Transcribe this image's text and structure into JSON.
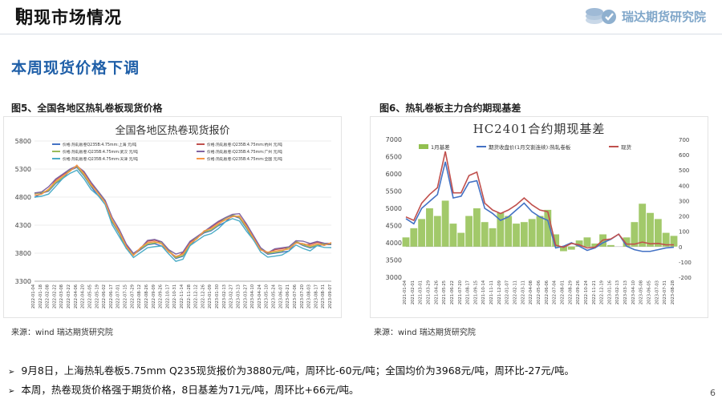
{
  "header": {
    "title": "期现市场情况",
    "brand": "瑞达期货研究院"
  },
  "subtitle": "本周现货价格下调",
  "figures": {
    "fig5_caption": "图5、全国各地区热轧卷板现货价格",
    "fig6_caption": "图6、热轧卷板主力合约期现基差",
    "fig5_source": "来源：wind   瑞达期货研究院",
    "fig6_source": "来源：wind   瑞达期货研究院"
  },
  "bullets": [
    "9月8日，上海热轧卷板5.75mm Q235现货报价为3880元/吨，周环比-60元/吨；全国均价为3968元/吨，周环比-27元/吨。",
    "本周，热卷现货价格强于期货价格，8日基差为71元/吨，周环比+66元/吨。"
  ],
  "page_number": "6",
  "colors": {
    "brand": "#7fa6c9",
    "subtitle": "#1f5fa8"
  },
  "chart_data": [
    {
      "type": "line",
      "title": "全国各地区热卷现货报价",
      "ylim": [
        3300,
        5800
      ],
      "yticks": [
        3300,
        3800,
        4300,
        4800,
        5300,
        5800
      ],
      "x_dates": [
        "2022-01-04",
        "2022-01-18",
        "2022-02-08",
        "2022-02-22",
        "2022-03-08",
        "2022-03-22",
        "2022-04-06",
        "2022-04-20",
        "2022-05-05",
        "2022-05-19",
        "2022-06-02",
        "2022-06-17",
        "2022-07-01",
        "2022-07-15",
        "2022-07-29",
        "2022-08-12",
        "2022-08-26",
        "2022-09-09",
        "2022-09-26",
        "2022-10-17",
        "2022-10-31",
        "2022-11-14",
        "2022-11-28",
        "2022-12-12",
        "2022-12-26",
        "2023-01-09",
        "2023-01-30",
        "2023-02-13",
        "2023-02-27",
        "2023-03-13",
        "2023-03-27",
        "2023-04-10",
        "2023-04-24",
        "2023-05-10",
        "2023-05-24",
        "2023-06-07",
        "2023-06-21",
        "2023-07-06",
        "2023-07-20",
        "2023-08-03",
        "2023-08-17",
        "2023-08-31",
        "2023-09-07"
      ],
      "x_label_step": 1,
      "series": [
        {
          "name": "价格:热轧板卷Q235B:4.75mm:上海 元/吨",
          "color": "#4472c4",
          "offset": 0
        },
        {
          "name": "价格:热轧板卷:Q235B:4.75mm:杭州 元/吨",
          "color": "#c0504d",
          "offset": 40
        },
        {
          "name": "价格:热轧板卷:Q235B:4.75mm:武汉 元/吨",
          "color": "#9bbb59",
          "offset": 20
        },
        {
          "name": "价格:热轧板卷:Q235B:4.75mm:广州 元/吨",
          "color": "#8064a2",
          "offset": 60
        },
        {
          "name": "价格:热轧板卷:Q235B:4.75mm:天津 元/吨",
          "color": "#4bacc6",
          "offset": -40
        },
        {
          "name": "价格:热轧板卷:Q235B:4.75mm:全国 元/吨",
          "color": "#f79646",
          "offset": 25
        }
      ],
      "base_values": [
        4820,
        4850,
        4900,
        5050,
        5150,
        5250,
        5320,
        5180,
        5000,
        4850,
        4700,
        4350,
        4150,
        3900,
        3750,
        3850,
        3950,
        3980,
        3950,
        3820,
        3700,
        3750,
        3950,
        4050,
        4150,
        4200,
        4300,
        4380,
        4450,
        4420,
        4250,
        4050,
        3850,
        3770,
        3800,
        3830,
        3860,
        3980,
        3930,
        3900,
        3950,
        3930,
        3940
      ]
    },
    {
      "type": "line+bar",
      "title": "HC2401合约期现基差",
      "ylim_left": [
        3000,
        7000
      ],
      "yticks_left": [
        3000,
        3500,
        4000,
        4500,
        5000,
        5500,
        6000,
        6500,
        7000
      ],
      "ylim_right": [
        -200,
        700
      ],
      "yticks_right": [
        -200,
        -100,
        0,
        100,
        200,
        300,
        400,
        500,
        600,
        700
      ],
      "x_dates": [
        "2021-01-04",
        "2021-02-01",
        "2021-03-01",
        "2021-03-29",
        "2021-04-26",
        "2021-05-25",
        "2021-06-22",
        "2021-07-20",
        "2021-08-17",
        "2021-09-15",
        "2021-10-14",
        "2021-11-11",
        "2021-12-09",
        "2022-01-07",
        "2022-02-11",
        "2022-03-11",
        "2022-04-08",
        "2022-05-06",
        "2022-06-06",
        "2022-07-04",
        "2022-08-01",
        "2022-08-29",
        "2022-09-26",
        "2022-10-24",
        "2022-11-21",
        "2022-12-19",
        "2023-01-16",
        "2023-02-13",
        "2023-03-13",
        "2023-04-10",
        "2023-05-08",
        "2023-06-05",
        "2023-07-03",
        "2023-07-31",
        "2023-08-28"
      ],
      "series": [
        {
          "name": "1月基差",
          "color": "#92c050",
          "axis": "right",
          "kind": "bar",
          "values": [
            60,
            120,
            180,
            250,
            200,
            300,
            150,
            90,
            200,
            250,
            160,
            120,
            220,
            200,
            150,
            160,
            180,
            200,
            240,
            80,
            -30,
            -20,
            40,
            60,
            20,
            80,
            10,
            0,
            60,
            160,
            280,
            220,
            180,
            90,
            70
          ]
        },
        {
          "name": "期货收盘价(1月交割连续):热轧卷板",
          "color": "#4472c4",
          "axis": "left",
          "kind": "line",
          "values": [
            4700,
            4550,
            5000,
            5200,
            5400,
            6350,
            5300,
            5350,
            5750,
            5800,
            5000,
            4850,
            4650,
            4750,
            4950,
            5150,
            4900,
            4750,
            4650,
            3850,
            3900,
            4000,
            3900,
            3780,
            3850,
            4000,
            4100,
            4250,
            3900,
            3800,
            3750,
            3750,
            3800,
            3850,
            3870
          ]
        },
        {
          "name": "现货",
          "color": "#c0504d",
          "axis": "left",
          "kind": "line",
          "values": [
            4750,
            4650,
            5150,
            5400,
            5600,
            6650,
            5450,
            5450,
            5950,
            6050,
            5150,
            4950,
            4850,
            4950,
            5100,
            5300,
            5100,
            4950,
            4900,
            3930,
            3870,
            3980,
            3940,
            3850,
            3870,
            4080,
            4110,
            4250,
            3960,
            3960,
            4020,
            3970,
            3980,
            3940,
            3940
          ]
        }
      ]
    }
  ]
}
